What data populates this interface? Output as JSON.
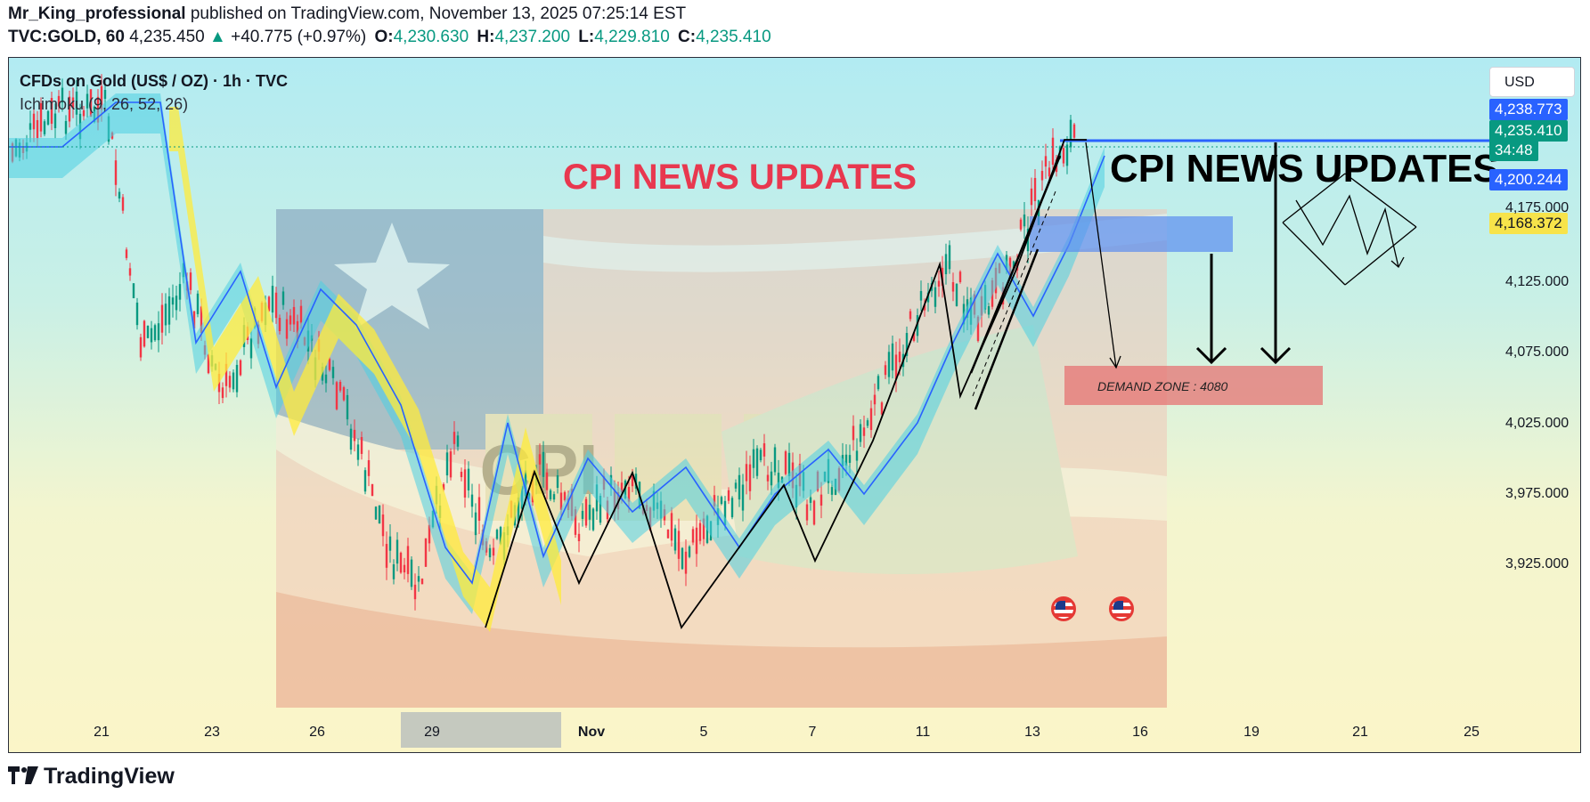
{
  "header": {
    "author": "Mr_King_professional",
    "published": "published on TradingView.com, November 13, 2025 07:25:14 EST",
    "symbol": "TVC:GOLD, 60",
    "last": "4,235.450",
    "arrow": "▲",
    "change": "+40.775 (+0.97%)",
    "o_label": "O:",
    "o": "4,230.630",
    "h_label": "H:",
    "h": "4,237.200",
    "l_label": "L:",
    "l": "4,229.810",
    "c_label": "C:",
    "c": "4,235.410"
  },
  "chart": {
    "title": "CFDs on Gold (US$ / OZ) · 1h · TVC",
    "indicator": "Ichimoku (9, 26, 52, 26)",
    "currency": "USD",
    "annotation_red": "CPI NEWS UPDATES",
    "annotation_black": "CPI NEWS UPDATES",
    "demand_zone": "DEMAND ZONE : 4080",
    "image_text": "CPI",
    "price_labels": [
      {
        "value": "4,238.773",
        "color": "#2962ff"
      },
      {
        "value": "4,235.410",
        "color": "#089981"
      },
      {
        "value": "34:48",
        "color": "#089981"
      },
      {
        "value": "4,200.244",
        "color": "#2962ff"
      },
      {
        "value": "4,168.372",
        "color": "#f7e34a"
      }
    ],
    "y_ticks": [
      "4,175.000",
      "4,125.000",
      "4,075.000",
      "4,025.000",
      "3,975.000",
      "3,925.000"
    ],
    "x_ticks": [
      "21",
      "23",
      "26",
      "29",
      "Nov",
      "5",
      "7",
      "11",
      "13",
      "16",
      "19",
      "21",
      "25"
    ],
    "colors": {
      "up": "#089981",
      "down": "#f23645",
      "tenkan": "#2962ff",
      "kumo_bull": "#4dd0e1",
      "kumo_bear": "#ffeb3b"
    }
  },
  "footer": {
    "brand": "TradingView"
  }
}
